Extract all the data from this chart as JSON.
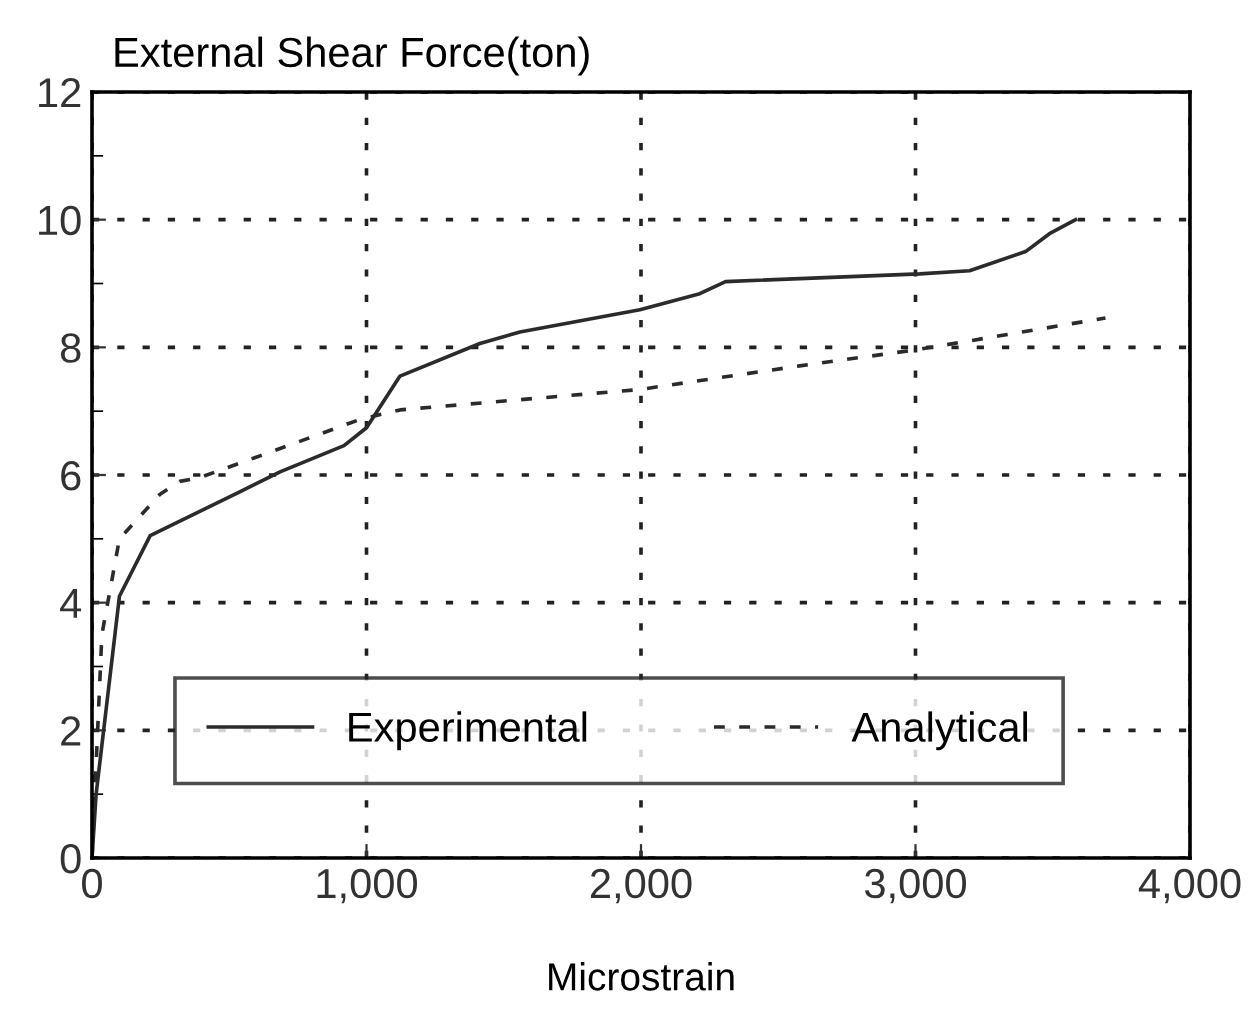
{
  "chart_data": {
    "type": "line",
    "ylabel": "External Shear Force(ton)",
    "xlabel": "Microstrain",
    "xlim": [
      0,
      4000
    ],
    "xticks": [
      {
        "value": 0,
        "label": "0"
      },
      {
        "value": 1000,
        "label": "1,000"
      },
      {
        "value": 2000,
        "label": "2,000"
      },
      {
        "value": 3000,
        "label": "3,000"
      },
      {
        "value": 4000,
        "label": "4,000"
      }
    ],
    "ylim": [
      0,
      12
    ],
    "yticks": [
      0,
      2,
      4,
      6,
      8,
      10,
      12
    ],
    "grid": true,
    "legend": "bottom",
    "marker": "none",
    "series": [
      {
        "name": "Experimental",
        "color": "#2b2b2b",
        "line_style": "solid",
        "x": [
          0,
          15,
          100,
          212,
          540,
          685,
          918,
          1000,
          1122,
          1413,
          1559,
          1996,
          2214,
          2308,
          3015,
          3197,
          3401,
          3488,
          3583
        ],
        "values": [
          0,
          1,
          4.1,
          5.05,
          5.74,
          6.05,
          6.46,
          6.74,
          7.55,
          8.06,
          8.24,
          8.59,
          8.84,
          9.03,
          9.15,
          9.2,
          9.5,
          9.78,
          10.0
        ]
      },
      {
        "name": "Analytical",
        "color": "#2b2b2b",
        "line_style": "dashed",
        "x": [
          0,
          36,
          100,
          248,
          320,
          393,
          612,
          976,
          1122,
          1996,
          2578,
          3000,
          3306,
          3692
        ],
        "values": [
          0,
          3.5,
          5.0,
          5.7,
          5.9,
          5.96,
          6.3,
          6.87,
          7.02,
          7.34,
          7.71,
          7.96,
          8.18,
          8.46
        ]
      }
    ]
  }
}
